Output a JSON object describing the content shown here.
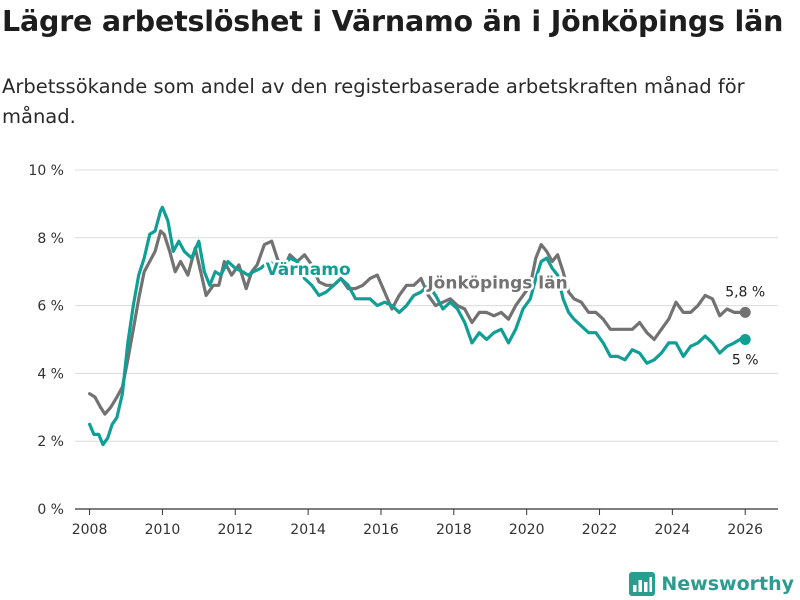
{
  "title": "Lägre arbetslöshet i Värnamo än i Jönköpings län",
  "subtitle": "Arbetssökande som andel av den registerbaserade arbetskraften månad för månad.",
  "brand": {
    "name": "Newsworthy",
    "color": "#2a9d8f"
  },
  "chart_data": {
    "type": "line",
    "title": "Lägre arbetslöshet i Värnamo än i Jönköpings län",
    "xlabel": "",
    "ylabel": "",
    "xlim": [
      2007.6,
      2026.9
    ],
    "ylim": [
      0,
      10
    ],
    "grid": true,
    "y_ticks": [
      0,
      2,
      4,
      6,
      8,
      10
    ],
    "y_tick_labels": [
      "0 %",
      "2 %",
      "4 %",
      "6 %",
      "8 %",
      "10 %"
    ],
    "x_ticks": [
      2008,
      2010,
      2012,
      2014,
      2016,
      2018,
      2020,
      2022,
      2024,
      2026
    ],
    "x_tick_labels": [
      "2008",
      "2010",
      "2012",
      "2014",
      "2016",
      "2018",
      "2020",
      "2022",
      "2024",
      "2026"
    ],
    "series": [
      {
        "name": "Jönköpings län",
        "label": "Jönköpings län",
        "color": "#727272",
        "end_label": "5,8 %",
        "x": [
          2008.0,
          2008.15,
          2008.3,
          2008.42,
          2008.58,
          2008.75,
          2008.9,
          2009.05,
          2009.2,
          2009.35,
          2009.5,
          2009.65,
          2009.8,
          2009.95,
          2010.05,
          2010.2,
          2010.35,
          2010.5,
          2010.7,
          2010.9,
          2011.05,
          2011.2,
          2011.4,
          2011.55,
          2011.7,
          2011.9,
          2012.1,
          2012.3,
          2012.45,
          2012.6,
          2012.8,
          2013.0,
          2013.15,
          2013.3,
          2013.5,
          2013.7,
          2013.9,
          2014.1,
          2014.3,
          2014.5,
          2014.7,
          2014.9,
          2015.1,
          2015.3,
          2015.5,
          2015.7,
          2015.9,
          2016.1,
          2016.3,
          2016.5,
          2016.7,
          2016.9,
          2017.1,
          2017.3,
          2017.5,
          2017.7,
          2017.9,
          2018.1,
          2018.3,
          2018.5,
          2018.7,
          2018.9,
          2019.1,
          2019.3,
          2019.5,
          2019.7,
          2019.9,
          2020.1,
          2020.25,
          2020.4,
          2020.55,
          2020.7,
          2020.85,
          2021.0,
          2021.15,
          2021.3,
          2021.5,
          2021.7,
          2021.9,
          2022.1,
          2022.3,
          2022.5,
          2022.7,
          2022.9,
          2023.1,
          2023.3,
          2023.5,
          2023.7,
          2023.9,
          2024.1,
          2024.3,
          2024.5,
          2024.7,
          2024.9,
          2025.1,
          2025.3,
          2025.5,
          2025.7,
          2025.85,
          2026.0
        ],
        "y": [
          3.4,
          3.3,
          3.0,
          2.8,
          3.0,
          3.3,
          3.6,
          4.4,
          5.3,
          6.2,
          7.0,
          7.3,
          7.6,
          8.2,
          8.1,
          7.6,
          7.0,
          7.3,
          6.9,
          7.7,
          7.0,
          6.3,
          6.6,
          6.6,
          7.3,
          6.9,
          7.2,
          6.5,
          7.0,
          7.2,
          7.8,
          7.9,
          7.4,
          7.0,
          7.5,
          7.3,
          7.5,
          7.2,
          6.7,
          6.6,
          6.6,
          6.8,
          6.5,
          6.5,
          6.6,
          6.8,
          6.9,
          6.4,
          5.9,
          6.3,
          6.6,
          6.6,
          6.8,
          6.3,
          6.0,
          6.1,
          6.2,
          6.0,
          5.9,
          5.5,
          5.8,
          5.8,
          5.7,
          5.8,
          5.6,
          6.0,
          6.3,
          6.6,
          7.4,
          7.8,
          7.6,
          7.3,
          7.5,
          7.0,
          6.4,
          6.2,
          6.1,
          5.8,
          5.8,
          5.6,
          5.3,
          5.3,
          5.3,
          5.3,
          5.5,
          5.2,
          5.0,
          5.3,
          5.6,
          6.1,
          5.8,
          5.8,
          6.0,
          6.3,
          6.2,
          5.7,
          5.9,
          5.8,
          5.8,
          5.8
        ]
      },
      {
        "name": "Värnamo",
        "label": "Värnamo",
        "color": "#0f9f94",
        "end_label": "5 %",
        "x": [
          2008.0,
          2008.12,
          2008.25,
          2008.37,
          2008.5,
          2008.62,
          2008.75,
          2008.9,
          2009.05,
          2009.2,
          2009.35,
          2009.5,
          2009.65,
          2009.8,
          2009.95,
          2010.0,
          2010.15,
          2010.3,
          2010.45,
          2010.6,
          2010.8,
          2011.0,
          2011.15,
          2011.3,
          2011.45,
          2011.6,
          2011.8,
          2012.0,
          2012.2,
          2012.35,
          2012.5,
          2012.7,
          2012.9,
          2013.1,
          2013.3,
          2013.5,
          2013.7,
          2013.9,
          2014.1,
          2014.3,
          2014.5,
          2014.7,
          2014.9,
          2015.1,
          2015.3,
          2015.5,
          2015.7,
          2015.9,
          2016.1,
          2016.3,
          2016.5,
          2016.7,
          2016.9,
          2017.1,
          2017.3,
          2017.5,
          2017.7,
          2017.9,
          2018.1,
          2018.3,
          2018.5,
          2018.7,
          2018.9,
          2019.1,
          2019.3,
          2019.5,
          2019.7,
          2019.9,
          2020.1,
          2020.25,
          2020.4,
          2020.55,
          2020.7,
          2020.85,
          2021.0,
          2021.15,
          2021.3,
          2021.5,
          2021.7,
          2021.9,
          2022.1,
          2022.3,
          2022.5,
          2022.7,
          2022.9,
          2023.1,
          2023.3,
          2023.5,
          2023.7,
          2023.9,
          2024.1,
          2024.3,
          2024.5,
          2024.7,
          2024.9,
          2025.1,
          2025.3,
          2025.5,
          2025.7,
          2025.85,
          2026.0
        ],
        "y": [
          2.5,
          2.2,
          2.2,
          1.9,
          2.1,
          2.5,
          2.7,
          3.4,
          4.9,
          6.0,
          6.9,
          7.4,
          8.1,
          8.2,
          8.8,
          8.9,
          8.5,
          7.6,
          7.9,
          7.6,
          7.4,
          7.9,
          7.0,
          6.6,
          7.0,
          6.9,
          7.3,
          7.1,
          7.0,
          6.9,
          7.0,
          7.1,
          7.3,
          7.2,
          7.1,
          7.4,
          7.3,
          6.8,
          6.6,
          6.3,
          6.4,
          6.6,
          6.8,
          6.6,
          6.2,
          6.2,
          6.2,
          6.0,
          6.1,
          6.0,
          5.8,
          6.0,
          6.3,
          6.4,
          6.6,
          6.3,
          5.9,
          6.1,
          5.9,
          5.5,
          4.9,
          5.2,
          5.0,
          5.2,
          5.3,
          4.9,
          5.3,
          5.9,
          6.2,
          6.8,
          7.3,
          7.4,
          7.1,
          6.9,
          6.2,
          5.8,
          5.6,
          5.4,
          5.2,
          5.2,
          4.9,
          4.5,
          4.5,
          4.4,
          4.7,
          4.6,
          4.3,
          4.4,
          4.6,
          4.9,
          4.9,
          4.5,
          4.8,
          4.9,
          5.1,
          4.9,
          4.6,
          4.8,
          4.9,
          5.0,
          5.0
        ]
      }
    ]
  }
}
